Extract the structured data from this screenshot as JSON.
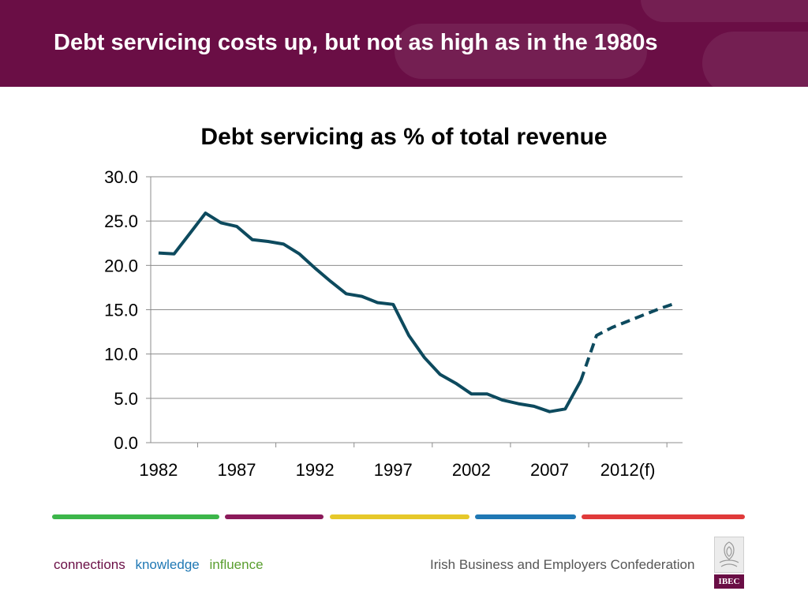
{
  "header": {
    "title": "Debt servicing costs up, but not as high as in the 1980s",
    "background_color": "#6a0e45"
  },
  "footer": {
    "tagline": [
      {
        "text": "connections",
        "color": "#6a0e45"
      },
      {
        "text": "knowledge",
        "color": "#1f78b4"
      },
      {
        "text": "influence",
        "color": "#5a9e2f"
      }
    ],
    "organization": "Irish Business and Employers Confederation",
    "logo_text": "IBEC",
    "strip_colors": [
      "#3cb64a",
      "#8b1a5a",
      "#e6c82a",
      "#1f78b4",
      "#e03a3a"
    ]
  },
  "chart_data": {
    "type": "line",
    "title": "Debt servicing as % of total revenue",
    "xlabel": "",
    "ylabel": "",
    "ylim": [
      0,
      30
    ],
    "yticks": [
      "0.0",
      "5.0",
      "10.0",
      "15.0",
      "20.0",
      "25.0",
      "30.0"
    ],
    "xticks": [
      {
        "year": 1982,
        "label": "1982"
      },
      {
        "year": 1987,
        "label": "1987"
      },
      {
        "year": 1992,
        "label": "1992"
      },
      {
        "year": 1997,
        "label": "1997"
      },
      {
        "year": 2002,
        "label": "2002"
      },
      {
        "year": 2007,
        "label": "2007"
      },
      {
        "year": 2012,
        "label": "2012(f)"
      }
    ],
    "xlim": [
      1981.5,
      2015.5
    ],
    "grid": true,
    "line_color": "#0d4a5e",
    "series": [
      {
        "style": "solid",
        "x": [
          1982,
          1983,
          1984,
          1985,
          1986,
          1987,
          1988,
          1989,
          1990,
          1991,
          1992,
          1993,
          1994,
          1995,
          1996,
          1997,
          1998,
          1999,
          2000,
          2001,
          2002,
          2003,
          2004,
          2005,
          2006,
          2007,
          2008,
          2009
        ],
        "y": [
          21.4,
          21.3,
          23.6,
          25.9,
          24.8,
          24.4,
          22.9,
          22.7,
          22.4,
          21.3,
          19.7,
          18.2,
          16.8,
          16.5,
          15.8,
          15.6,
          12.1,
          9.6,
          7.7,
          6.7,
          5.5,
          5.5,
          4.8,
          4.4,
          4.1,
          3.5,
          3.8,
          7.0
        ]
      },
      {
        "style": "dashed",
        "x": [
          2009,
          2010,
          2011,
          2012,
          2013,
          2014,
          2015
        ],
        "y": [
          7.0,
          12.1,
          13.0,
          13.7,
          14.4,
          15.1,
          15.7
        ]
      }
    ]
  }
}
